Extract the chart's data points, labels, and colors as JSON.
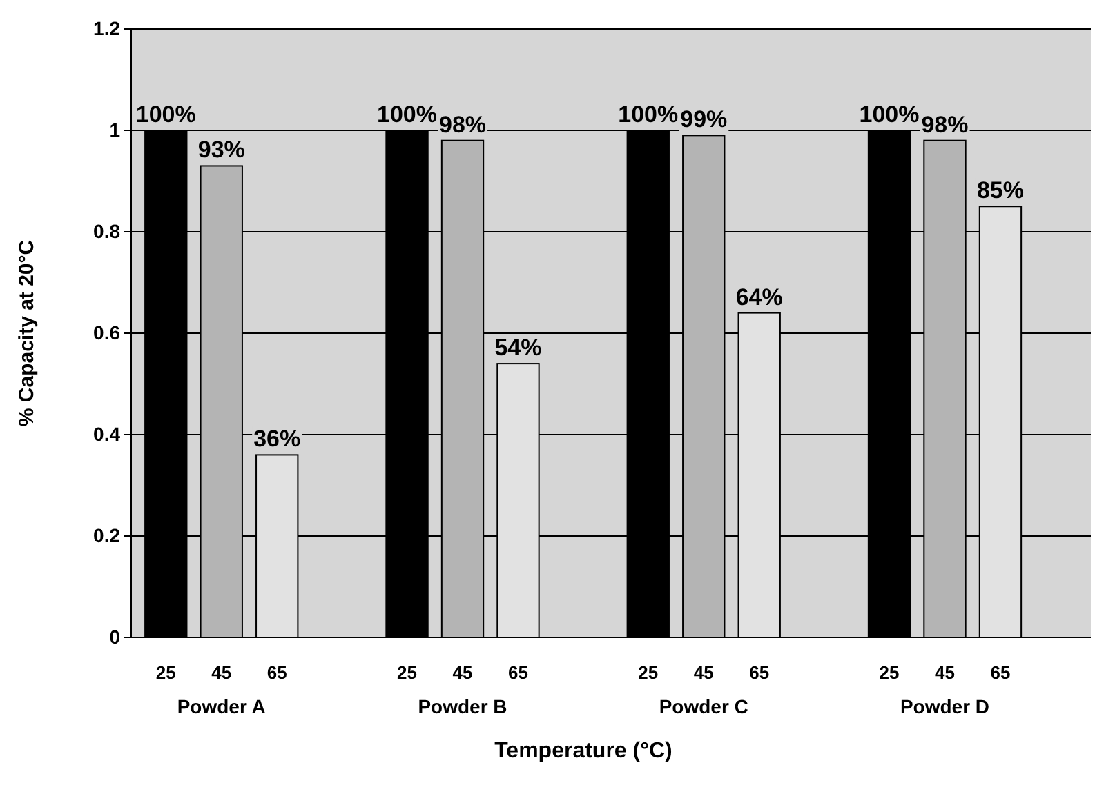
{
  "chart_data": {
    "type": "bar",
    "xlabel": "Temperature (°C)",
    "ylabel": "% Capacity at 20°C",
    "categories": [
      "Powder A",
      "Powder B",
      "Powder C",
      "Powder D"
    ],
    "series": [
      {
        "name": "25",
        "color": "#000000",
        "values": [
          1,
          1,
          1,
          1
        ],
        "value_labels": [
          "100%",
          "100%",
          "100%",
          "100%"
        ]
      },
      {
        "name": "45",
        "color": "#b4b4b4",
        "values": [
          0.93,
          0.98,
          0.99,
          0.98
        ],
        "value_labels": [
          "93%",
          "98%",
          "99%",
          "98%"
        ]
      },
      {
        "name": "65",
        "color": "#e2e2e2",
        "values": [
          0.36,
          0.54,
          0.64,
          0.85
        ],
        "value_labels": [
          "36%",
          "54%",
          "64%",
          "85%"
        ]
      }
    ],
    "ylim": [
      0,
      1.2
    ],
    "yticks": [
      0,
      0.2,
      0.4,
      0.6,
      0.8,
      1,
      1.2
    ],
    "grid": "y"
  }
}
